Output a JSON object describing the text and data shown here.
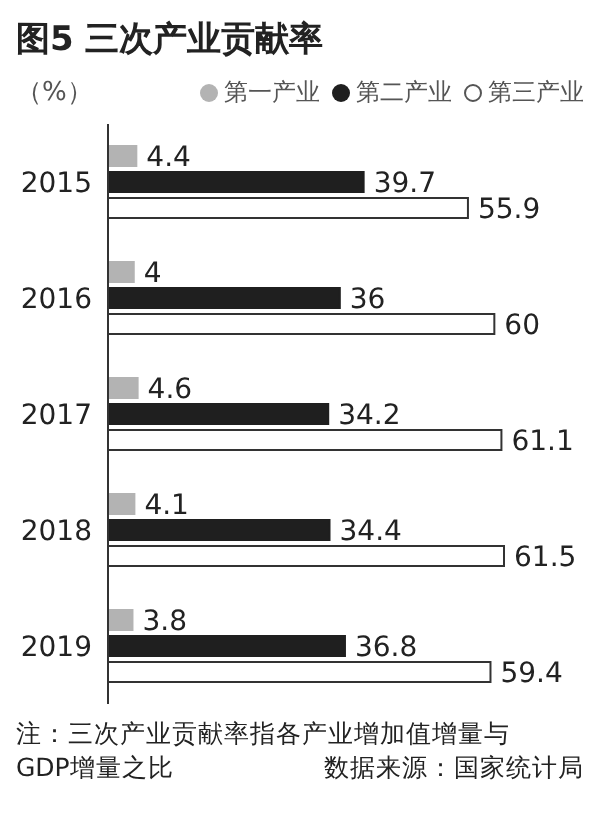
{
  "chart_data": {
    "type": "bar",
    "orientation": "horizontal",
    "title": "图5 三次产业贡献率",
    "xlabel": "（%）",
    "categories": [
      "2015",
      "2016",
      "2017",
      "2018",
      "2019"
    ],
    "series": [
      {
        "name": "第一产业",
        "color": "#b3b3b3",
        "values": [
          4.4,
          4,
          4.6,
          4.1,
          3.8
        ]
      },
      {
        "name": "第二产业",
        "color": "#1f1f1f",
        "values": [
          39.7,
          36,
          34.2,
          34.4,
          36.8
        ]
      },
      {
        "name": "第三产业",
        "color": "#ffffff",
        "values": [
          55.9,
          60,
          61.1,
          61.5,
          59.4
        ]
      }
    ],
    "data_labels": true,
    "legend": "top",
    "annotations": [
      "注：三次产业贡献率指各产业增加值增量与GDP增量之比",
      "数据来源：国家统计局"
    ]
  }
}
